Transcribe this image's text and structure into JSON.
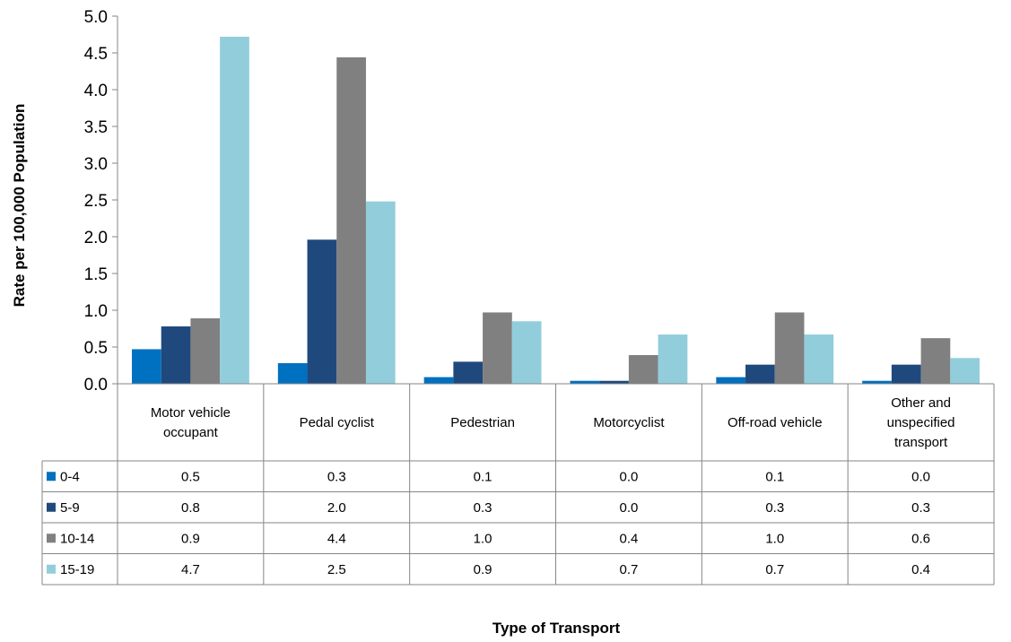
{
  "chart_data": {
    "type": "bar",
    "xlabel": "Type of Transport",
    "ylabel": "Rate per 100,000 Population",
    "ylim": [
      0,
      5
    ],
    "yticks": [
      "0.0",
      "0.5",
      "1.0",
      "1.5",
      "2.0",
      "2.5",
      "3.0",
      "3.5",
      "4.0",
      "4.5",
      "5.0"
    ],
    "grid": false,
    "legend": "data-table",
    "categories": [
      [
        "Motor vehicle",
        "occupant"
      ],
      [
        "Pedal cyclist"
      ],
      [
        "Pedestrian"
      ],
      [
        "Motorcyclist"
      ],
      [
        "Off-road vehicle"
      ],
      [
        "Other and",
        "unspecified",
        "transport"
      ]
    ],
    "series": [
      {
        "name": "0-4",
        "color": "#0070C0",
        "values": [
          0.47,
          0.28,
          0.09,
          0.04,
          0.09,
          0.04
        ],
        "labels": [
          "0.5",
          "0.3",
          "0.1",
          "0.0",
          "0.1",
          "0.0"
        ]
      },
      {
        "name": "5-9",
        "color": "#1F497D",
        "values": [
          0.78,
          1.96,
          0.3,
          0.04,
          0.26,
          0.26
        ],
        "labels": [
          "0.8",
          "2.0",
          "0.3",
          "0.0",
          "0.3",
          "0.3"
        ]
      },
      {
        "name": "10-14",
        "color": "#808080",
        "values": [
          0.89,
          4.44,
          0.97,
          0.39,
          0.97,
          0.62
        ],
        "labels": [
          "0.9",
          "4.4",
          "1.0",
          "0.4",
          "1.0",
          "0.6"
        ]
      },
      {
        "name": "15-19",
        "color": "#92CDDC",
        "values": [
          4.72,
          2.48,
          0.85,
          0.67,
          0.67,
          0.35
        ],
        "labels": [
          "4.7",
          "2.5",
          "0.9",
          "0.7",
          "0.7",
          "0.4"
        ]
      }
    ]
  }
}
